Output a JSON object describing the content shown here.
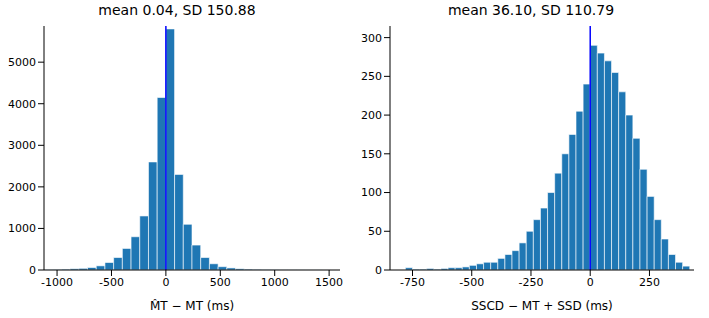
{
  "chart_data": [
    {
      "type": "histogram",
      "title": "mean 0.04, SD 150.88",
      "x_label": "M̂T − MT (ms)",
      "bins": [
        -1120,
        -1040,
        -960,
        -880,
        -800,
        -720,
        -640,
        -560,
        -480,
        -400,
        -320,
        -240,
        -160,
        -80,
        0,
        80,
        160,
        240,
        320,
        400,
        480,
        560,
        640,
        720,
        800,
        880,
        960,
        1040,
        1120,
        1200,
        1280,
        1360,
        1440,
        1520
      ],
      "values": [
        10,
        15,
        20,
        30,
        40,
        60,
        100,
        180,
        300,
        520,
        800,
        1300,
        2600,
        4150,
        5800,
        2300,
        1100,
        600,
        300,
        150,
        80,
        50,
        30,
        20,
        15,
        10,
        8,
        5,
        4,
        3,
        2,
        2,
        1
      ],
      "color": "#1f77b4",
      "xlim": [
        -1120,
        1600
      ],
      "xticks": [
        -1000,
        -500,
        0,
        500,
        1000,
        1500
      ],
      "ylim": [
        0,
        5870
      ],
      "yticks": [
        0,
        1000,
        2000,
        3000,
        4000,
        5000
      ],
      "reference_line": {
        "x": 0,
        "color": "#0000ff"
      }
    },
    {
      "type": "histogram",
      "title": "mean 36.10, SD 110.79",
      "x_label": "SSCD − MT + SSD (ms)",
      "bins": [
        -780,
        -750,
        -720,
        -690,
        -660,
        -630,
        -600,
        -570,
        -540,
        -510,
        -480,
        -450,
        -420,
        -390,
        -360,
        -330,
        -300,
        -270,
        -240,
        -210,
        -180,
        -150,
        -120,
        -90,
        -60,
        -30,
        0,
        30,
        60,
        90,
        120,
        150,
        180,
        210,
        240,
        270,
        300,
        330,
        360,
        390,
        420
      ],
      "values": [
        3,
        1,
        1,
        2,
        1,
        2,
        3,
        3,
        4,
        6,
        8,
        10,
        10,
        15,
        20,
        25,
        35,
        50,
        65,
        80,
        100,
        125,
        150,
        175,
        205,
        240,
        290,
        280,
        270,
        255,
        230,
        200,
        170,
        130,
        95,
        65,
        40,
        20,
        10,
        5
      ],
      "color": "#1f77b4",
      "xlim": [
        -845,
        438
      ],
      "xticks": [
        -750,
        -500,
        -250,
        0,
        250
      ],
      "ylim": [
        0,
        315
      ],
      "yticks": [
        0,
        50,
        100,
        150,
        200,
        250,
        300
      ],
      "reference_line": {
        "x": 0,
        "color": "#0000ff"
      }
    }
  ]
}
